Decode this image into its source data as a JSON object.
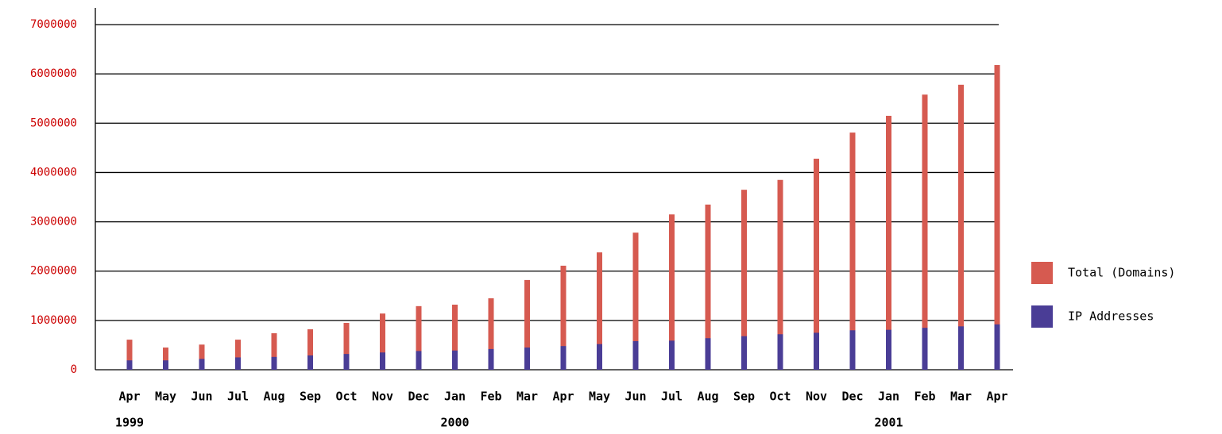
{
  "chart_data": {
    "type": "bar",
    "categories": [
      "Apr",
      "May",
      "Jun",
      "Jul",
      "Aug",
      "Sep",
      "Oct",
      "Nov",
      "Dec",
      "Jan",
      "Feb",
      "Mar",
      "Apr",
      "May",
      "Jun",
      "Jul",
      "Aug",
      "Sep",
      "Oct",
      "Nov",
      "Dec",
      "Jan",
      "Feb",
      "Mar",
      "Apr"
    ],
    "year_labels": [
      "1999",
      null,
      null,
      null,
      null,
      null,
      null,
      null,
      null,
      "2000",
      null,
      null,
      null,
      null,
      null,
      null,
      null,
      null,
      null,
      null,
      null,
      "2001",
      null,
      null,
      null
    ],
    "series": [
      {
        "name": "Total (Domains)",
        "color": "#d65a50",
        "values": [
          610000,
          450000,
          510000,
          610000,
          740000,
          820000,
          950000,
          1140000,
          1290000,
          1320000,
          1450000,
          1820000,
          2110000,
          2380000,
          2780000,
          3150000,
          3350000,
          3650000,
          3850000,
          4280000,
          4810000,
          5150000,
          5580000,
          5780000,
          6180000
        ]
      },
      {
        "name": "IP Addresses",
        "color": "#4a3d96",
        "values": [
          190000,
          190000,
          220000,
          250000,
          260000,
          290000,
          320000,
          350000,
          380000,
          390000,
          420000,
          450000,
          480000,
          520000,
          580000,
          590000,
          640000,
          680000,
          720000,
          750000,
          800000,
          810000,
          850000,
          880000,
          920000
        ]
      }
    ],
    "ylim": [
      0,
      7000000
    ],
    "yticks": [
      0,
      1000000,
      2000000,
      3000000,
      4000000,
      5000000,
      6000000,
      7000000
    ],
    "grid": true,
    "legend": "right"
  }
}
